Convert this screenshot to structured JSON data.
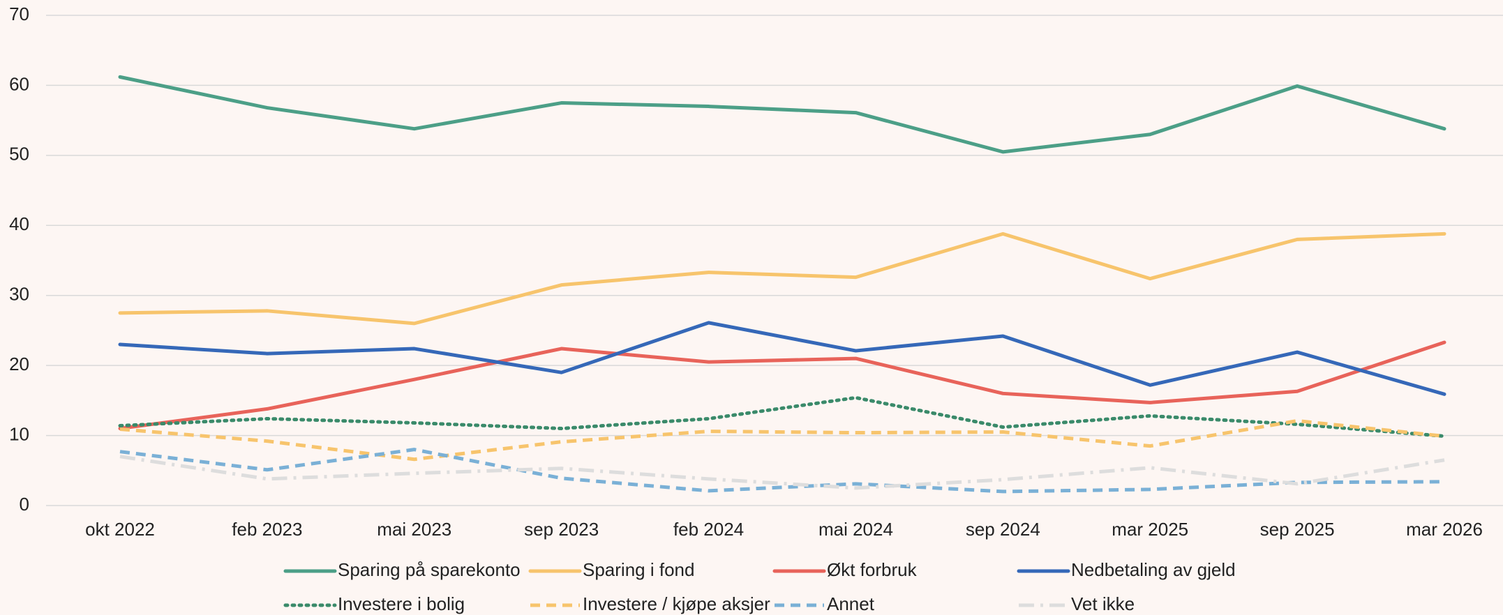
{
  "chart_data": {
    "type": "line",
    "categories": [
      "okt 2022",
      "feb 2023",
      "mai 2023",
      "sep 2023",
      "feb 2024",
      "mai 2024",
      "sep 2024",
      "mar 2025",
      "sep 2025",
      "mar 2026"
    ],
    "ylim": [
      0,
      70
    ],
    "yticks": [
      0,
      10,
      20,
      30,
      40,
      50,
      60,
      70
    ],
    "grid": true,
    "series": [
      {
        "name": "Sparing på sparekonto",
        "color": "#4c9f87",
        "dash": "solid",
        "values": [
          61.2,
          56.8,
          53.8,
          57.5,
          57,
          56.1,
          50.5,
          53,
          59.9,
          53.8
        ]
      },
      {
        "name": "Sparing i fond",
        "color": "#f7c46c",
        "dash": "solid",
        "values": [
          27.5,
          27.8,
          26,
          31.5,
          33.3,
          32.6,
          38.8,
          32.4,
          38,
          38.8
        ]
      },
      {
        "name": "Økt forbruk",
        "color": "#e8635a",
        "dash": "solid",
        "values": [
          11,
          13.8,
          18,
          22.4,
          20.5,
          21,
          16,
          14.7,
          16.3,
          23.3
        ]
      },
      {
        "name": "Nedbetaling av gjeld",
        "color": "#3568b8",
        "dash": "solid",
        "values": [
          23,
          21.7,
          22.4,
          19,
          26.1,
          22.1,
          24.2,
          17.2,
          21.9,
          15.9
        ]
      },
      {
        "name": "Investere i bolig",
        "color": "#3a8a6a",
        "dash": "dotted",
        "values": [
          11.4,
          12.4,
          11.8,
          11,
          12.4,
          15.4,
          11.2,
          12.8,
          11.6,
          9.9
        ]
      },
      {
        "name": "Investere / kjøpe aksjer",
        "color": "#f7c46c",
        "dash": "dashed",
        "values": [
          10.9,
          9.2,
          6.6,
          9.1,
          10.6,
          10.4,
          10.5,
          8.5,
          12.1,
          9.9
        ]
      },
      {
        "name": "Annet",
        "color": "#7ab0d6",
        "dash": "dashed",
        "values": [
          7.7,
          5.1,
          8,
          3.9,
          2.1,
          3.1,
          2,
          2.3,
          3.3,
          3.4
        ]
      },
      {
        "name": "Vet ikke",
        "color": "#dddddd",
        "dash": "dashdot",
        "values": [
          7,
          3.8,
          4.6,
          5.3,
          3.8,
          2.5,
          3.7,
          5.4,
          3.1,
          6.5
        ]
      }
    ]
  }
}
